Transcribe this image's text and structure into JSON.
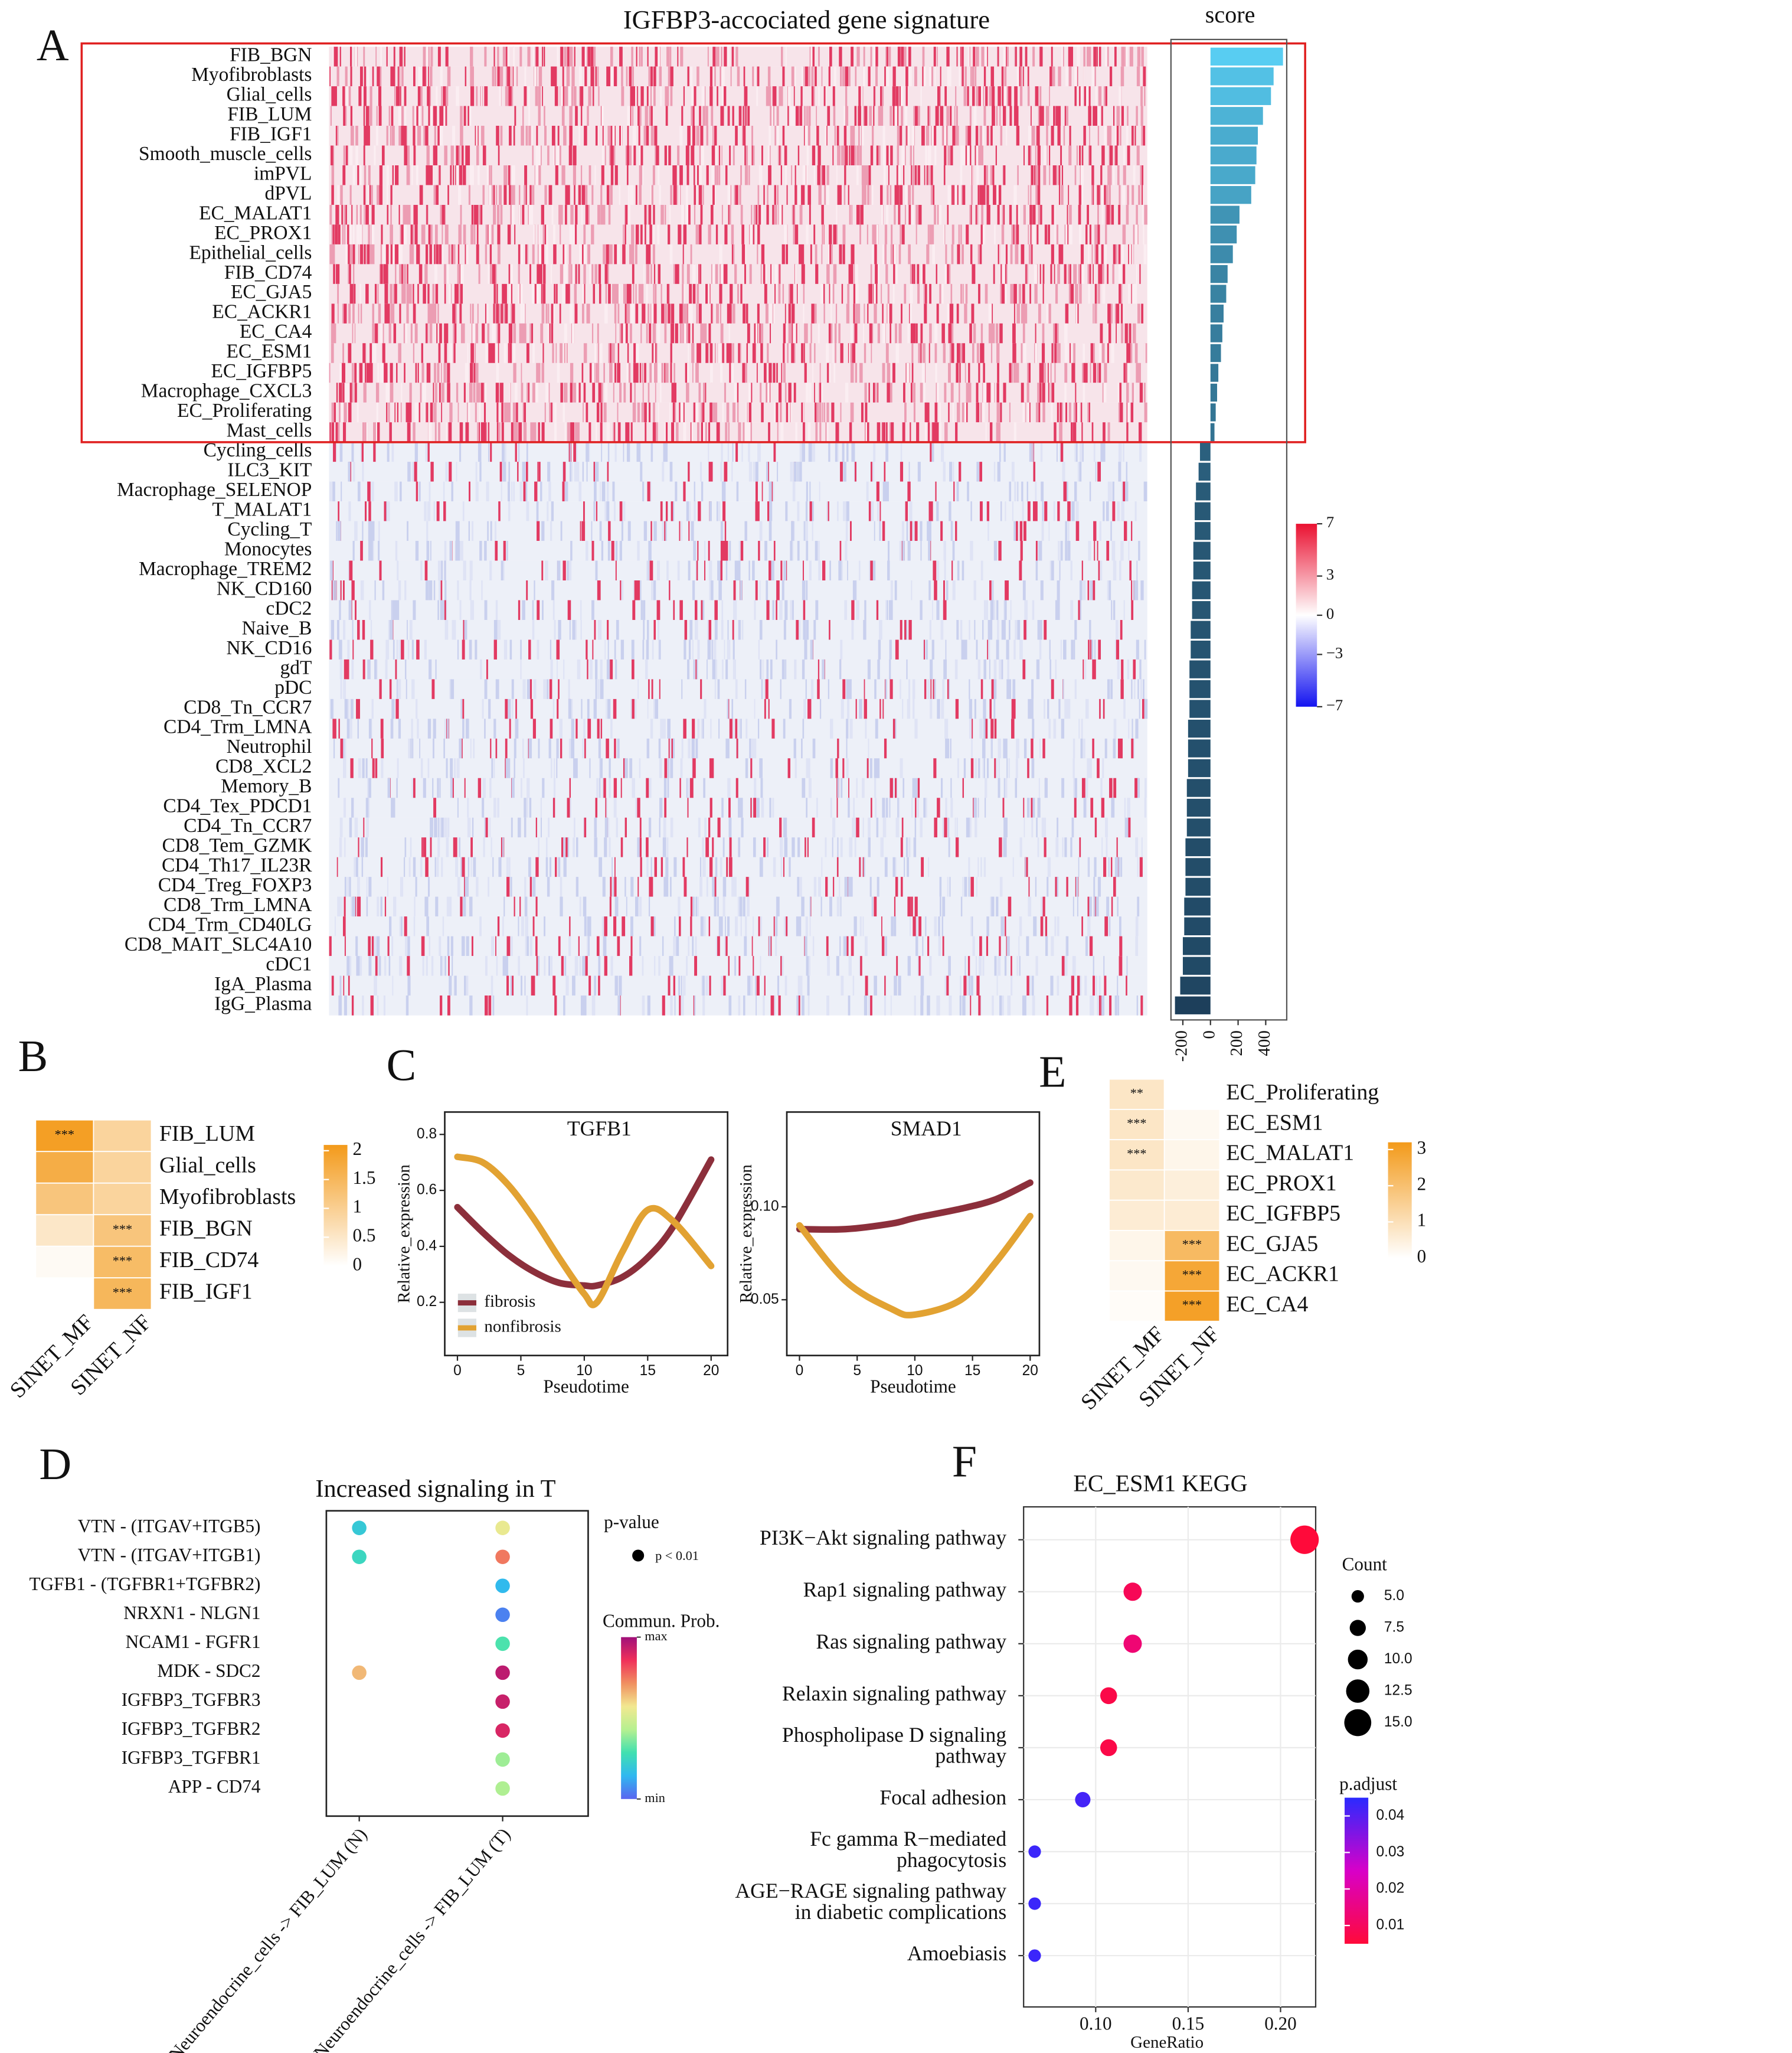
{
  "panel_labels": [
    "A",
    "B",
    "C",
    "D",
    "E",
    "F"
  ],
  "chart_data": [
    {
      "type": "heatmap_score",
      "title": "IGFBP3-accociated gene signature",
      "score_title": "score",
      "categories": [
        "FIB_BGN",
        "Myofibroblasts",
        "Glial_cells",
        "FIB_LUM",
        "FIB_IGF1",
        "Smooth_muscle_cells",
        "imPVL",
        "dPVL",
        "EC_MALAT1",
        "EC_PROX1",
        "Epithelial_cells",
        "FIB_CD74",
        "EC_GJA5",
        "EC_ACKR1",
        "EC_CA4",
        "EC_ESM1",
        "EC_IGFBP5",
        "Macrophage_CXCL3",
        "EC_Proliferating",
        "Mast_cells",
        "Cycling_cells",
        "ILC3_KIT",
        "Macrophage_SELENOP",
        "T_MALAT1",
        "Cycling_T",
        "Monocytes",
        "Macrophage_TREM2",
        "NK_CD160",
        "cDC2",
        "Naive_B",
        "NK_CD16",
        "gdT",
        "pDC",
        "CD8_Tn_CCR7",
        "CD4_Trm_LMNA",
        "Neutrophil",
        "CD8_XCL2",
        "Memory_B",
        "CD4_Tex_PDCD1",
        "CD4_Tn_CCR7",
        "CD8_Tem_GZMK",
        "CD4_Th17_IL23R",
        "CD4_Treg_FOXP3",
        "CD8_Trm_LMNA",
        "CD4_Trm_CD40LG",
        "CD8_MAIT_SLC4A10",
        "cDC1",
        "IgA_Plasma",
        "IgG_Plasma"
      ],
      "values": [
        525,
        457,
        438,
        380,
        343,
        333,
        324,
        295,
        210,
        190,
        162,
        124,
        114,
        95,
        86,
        76,
        57,
        48,
        38,
        29,
        -76,
        -86,
        -105,
        -114,
        -114,
        -124,
        -124,
        -133,
        -133,
        -143,
        -143,
        -152,
        -152,
        -152,
        -162,
        -162,
        -162,
        -171,
        -171,
        -171,
        -181,
        -181,
        -181,
        -190,
        -190,
        -200,
        -200,
        -219,
        -257
      ],
      "xlim": [
        -286,
        552
      ],
      "xticks": [
        -200,
        0,
        200,
        400
      ],
      "bar_colors": [
        "#1b3a55",
        "#5ad2f7"
      ],
      "colorbar": {
        "ylim": [
          -7,
          7
        ],
        "yticks": [
          7,
          3,
          0,
          {
            "value": -3,
            "label": "−3"
          },
          {
            "value": -7,
            "label": "−7"
          }
        ],
        "colors": [
          "#1414f0",
          "#ffffff",
          "#ea1131"
        ]
      }
    },
    {
      "type": "heatmap",
      "columns": [
        "SINET_MF",
        "SINET_NF"
      ],
      "rows": [
        "FIB_LUM",
        "Glial_cells",
        "Myofibroblasts",
        "FIB_BGN",
        "FIB_CD74",
        "FIB_IGF1"
      ],
      "values": [
        [
          2.0,
          0.9
        ],
        [
          1.7,
          0.9
        ],
        [
          1.2,
          0.9
        ],
        [
          0.5,
          1.2
        ],
        [
          0.1,
          1.4
        ],
        [
          0.0,
          1.5
        ]
      ],
      "annotations": [
        {
          "row": 0,
          "col": 0,
          "label": "***"
        },
        {
          "row": 3,
          "col": 1,
          "label": "***"
        },
        {
          "row": 4,
          "col": 1,
          "label": "***"
        },
        {
          "row": 5,
          "col": 1,
          "label": "***"
        }
      ],
      "clim": [
        0,
        2.1
      ],
      "cticks": [
        0,
        0.5,
        1,
        1.5,
        2
      ],
      "colors": [
        "#ffffff",
        "#f39a1a"
      ]
    },
    {
      "type": "line",
      "title": "TGFB1",
      "xlabel": "Pseudotime",
      "ylabel": "Relative_expression",
      "x": [
        0,
        2,
        4,
        6,
        8,
        10,
        11,
        13,
        15,
        17,
        20
      ],
      "series": [
        {
          "name": "fibrosis",
          "color": "#8c2f3b",
          "values": [
            0.54,
            0.45,
            0.37,
            0.31,
            0.27,
            0.26,
            0.26,
            0.29,
            0.36,
            0.47,
            0.71
          ]
        },
        {
          "name": "nonfibrosis",
          "color": "#e2a232",
          "values": [
            0.72,
            0.7,
            0.62,
            0.5,
            0.36,
            0.23,
            0.2,
            0.38,
            0.53,
            0.49,
            0.33
          ]
        }
      ],
      "xlim": [
        -1,
        21.3
      ],
      "ylim": [
        0.01,
        0.88
      ],
      "xticks": [
        0,
        5,
        10,
        15,
        20
      ],
      "yticks": [
        0.2,
        0.4,
        0.6,
        0.8
      ],
      "legend": "bottom-left"
    },
    {
      "type": "line",
      "title": "SMAD1",
      "xlabel": "Pseudotime",
      "ylabel": "Relative_expression",
      "x": [
        0,
        4,
        8,
        10,
        14,
        17,
        20
      ],
      "series": [
        {
          "name": "fibrosis",
          "color": "#8c2f3b",
          "values": [
            0.088,
            0.088,
            0.091,
            0.094,
            0.099,
            0.104,
            0.113
          ]
        },
        {
          "name": "nonfibrosis",
          "color": "#e2a232",
          "values": [
            0.09,
            0.06,
            0.045,
            0.042,
            0.05,
            0.07,
            0.095
          ]
        }
      ],
      "xlim": [
        -1.1,
        20.8
      ],
      "ylim": [
        0.02,
        0.151
      ],
      "xticks": [
        0,
        5,
        10,
        15,
        20
      ],
      "yticks": [
        0.05,
        {
          "value": 0.1,
          "label": "0.10"
        }
      ]
    },
    {
      "type": "heatmap",
      "columns": [
        "SINET_MF",
        "SINET_NF"
      ],
      "rows": [
        "EC_Proliferating",
        "EC_ESM1",
        "EC_MALAT1",
        "EC_PROX1",
        "EC_IGFBP5",
        "EC_GJA5",
        "EC_ACKR1",
        "EC_CA4"
      ],
      "values": [
        [
          0.8,
          0.0
        ],
        [
          0.8,
          0.2
        ],
        [
          0.8,
          0.3
        ],
        [
          0.7,
          0.5
        ],
        [
          0.6,
          0.6
        ],
        [
          0.3,
          2.2
        ],
        [
          0.2,
          2.8
        ],
        [
          0.1,
          3.0
        ]
      ],
      "annotations": [
        {
          "row": 0,
          "col": 0,
          "label": "**"
        },
        {
          "row": 1,
          "col": 0,
          "label": "***"
        },
        {
          "row": 2,
          "col": 0,
          "label": "***"
        },
        {
          "row": 5,
          "col": 1,
          "label": "***"
        },
        {
          "row": 6,
          "col": 1,
          "label": "***"
        },
        {
          "row": 7,
          "col": 1,
          "label": "***"
        }
      ],
      "clim": [
        0,
        3.2
      ],
      "cticks": [
        0,
        1,
        2,
        3
      ],
      "colors": [
        "#ffffff",
        "#f39a1a"
      ]
    },
    {
      "type": "dot_comm",
      "title": "Increased signaling in T",
      "categories": [
        "VTN - (ITGAV+ITGB5)",
        "VTN - (ITGAV+ITGB1)",
        "TGFB1 - (TGFBR1+TGFBR2)",
        "NRXN1 - NLGN1",
        "NCAM1 - FGFR1",
        "MDK - SDC2",
        "IGFBP3_TGFBR3",
        "IGFBP3_TGFBR2",
        "IGFBP3_TGFBR1",
        "APP - CD74"
      ],
      "series": [
        {
          "name": "Neuroendocrine_cells -> FIB_LUM (N)",
          "color": "#e37a9b",
          "values": [
            0.2,
            0.25,
            null,
            null,
            null,
            0.65,
            null,
            null,
            null,
            null
          ]
        },
        {
          "name": "Neuroendocrine_cells -> FIB_LUM (T)",
          "color": "#3fe0e0",
          "values": [
            0.55,
            0.75,
            0.15,
            0.05,
            0.3,
            0.95,
            0.93,
            0.9,
            0.4,
            0.42
          ]
        }
      ],
      "size_title": "p-value",
      "size_label": "p < 0.01",
      "color_title": "Commun. Prob.",
      "clim": [
        0,
        1
      ],
      "cticks": [
        {
          "value": 0,
          "label": "min"
        },
        {
          "value": 1,
          "label": "max"
        }
      ],
      "colors": [
        "#5a64f0",
        "#30b8f0",
        "#40e0b0",
        "#b6f090",
        "#f2e890",
        "#f09060",
        "#f0305a",
        "#a0107a"
      ]
    },
    {
      "type": "dot_enrich",
      "title": "EC_ESM1 KEGG",
      "xlabel": "GeneRatio",
      "categories": [
        [
          "PI3K−Akt signaling pathway"
        ],
        [
          "Rap1 signaling pathway"
        ],
        [
          "Ras signaling pathway"
        ],
        [
          "Relaxin signaling pathway"
        ],
        [
          "Phospholipase D signaling",
          "pathway"
        ],
        [
          "Focal adhesion"
        ],
        [
          "Fc gamma R−mediated",
          "phagocytosis"
        ],
        [
          "AGE−RAGE signaling pathway",
          "in diabetic complications"
        ],
        [
          "Amoebiasis"
        ]
      ],
      "values": [
        0.213,
        0.12,
        0.12,
        0.107,
        0.107,
        0.093,
        0.067,
        0.067,
        0.067
      ],
      "counts": [
        16,
        9,
        9,
        8,
        8,
        7,
        5,
        5,
        5
      ],
      "padj": [
        0.005,
        0.009,
        0.013,
        0.007,
        0.007,
        0.042,
        0.043,
        0.043,
        0.043
      ],
      "xlim": [
        0.061,
        0.219
      ],
      "xticks": [
        {
          "value": 0.1,
          "label": "0.10"
        },
        0.15,
        {
          "value": 0.2,
          "label": "0.20"
        }
      ],
      "size_title": "Count",
      "size_ticks": [
        {
          "value": 5,
          "label": "5.0"
        },
        7.5,
        {
          "value": 10,
          "label": "10.0"
        },
        12.5,
        {
          "value": 15,
          "label": "15.0"
        }
      ],
      "color_title": "p.adjust",
      "clim": [
        0.005,
        0.045
      ],
      "cticks": [
        0.01,
        0.02,
        0.03,
        0.04
      ],
      "colors": [
        "#ff0a3a",
        "#d800c8",
        "#2a2aff"
      ]
    }
  ]
}
